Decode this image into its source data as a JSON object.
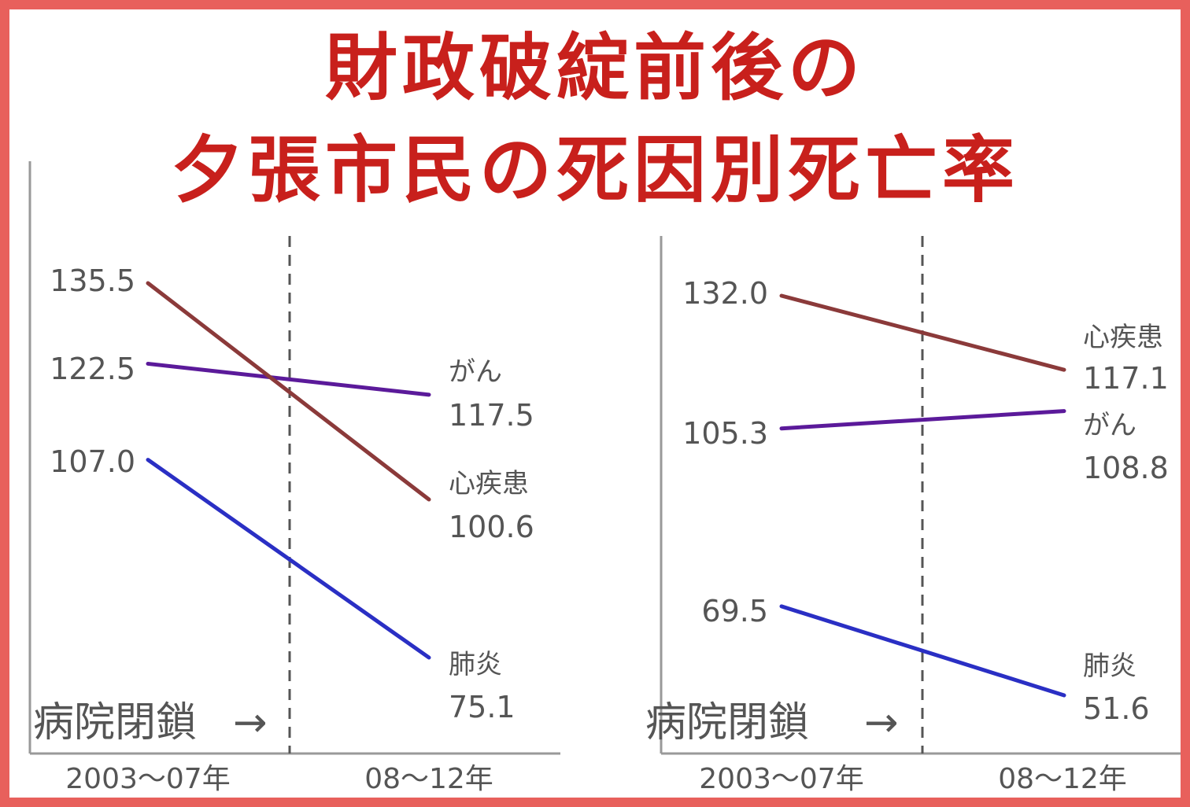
{
  "title": {
    "line1": "財政破綻前後の",
    "line2": "夕張市民の死因別死亡率"
  },
  "annotation": {
    "text": "病院閉鎖",
    "arrow": "→"
  },
  "colors": {
    "frame": "#e8605c",
    "title": "#c8201c",
    "heart": "#8b3a3a",
    "cancer": "#5b1a9a",
    "pneumonia": "#2a2fc4",
    "axis": "#999999"
  },
  "chart_data": [
    {
      "type": "line",
      "categories": [
        "2003〜07年",
        "08〜12年"
      ],
      "series": [
        {
          "name": "がん",
          "values": [
            122.5,
            117.5
          ],
          "color": "#5b1a9a"
        },
        {
          "name": "心疾患",
          "values": [
            135.5,
            100.6
          ],
          "color": "#8b3a3a"
        },
        {
          "name": "肺炎",
          "values": [
            107.0,
            75.1
          ],
          "color": "#2a2fc4"
        }
      ],
      "start_labels": [
        "122.5",
        "135.5",
        "107.0"
      ],
      "end_labels": [
        "117.5",
        "100.6",
        "75.1"
      ]
    },
    {
      "type": "line",
      "categories": [
        "2003〜07年",
        "08〜12年"
      ],
      "series": [
        {
          "name": "心疾患",
          "values": [
            132.0,
            117.1
          ],
          "color": "#8b3a3a"
        },
        {
          "name": "がん",
          "values": [
            105.3,
            108.8
          ],
          "color": "#5b1a9a"
        },
        {
          "name": "肺炎",
          "values": [
            69.5,
            51.6
          ],
          "color": "#2a2fc4"
        }
      ],
      "start_labels": [
        "132.0",
        "105.3",
        "69.5"
      ],
      "end_labels": [
        "117.1",
        "108.8",
        "51.6"
      ]
    }
  ]
}
